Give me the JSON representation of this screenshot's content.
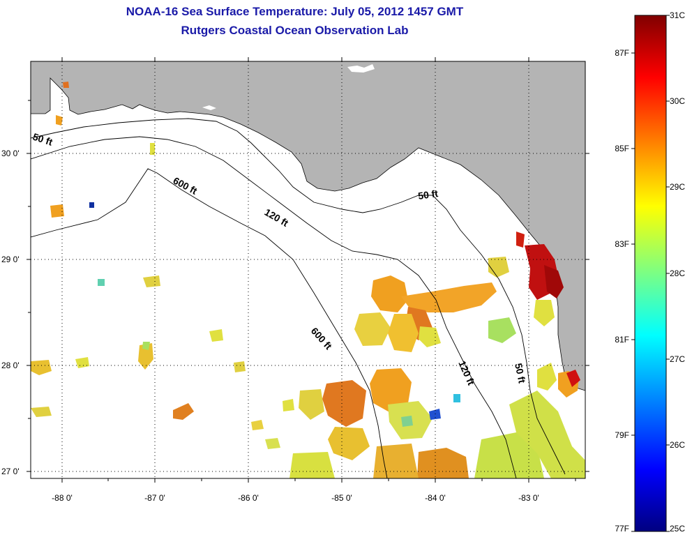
{
  "header": {
    "title": "NOAA-16 Sea Surface Temperature:  July 05, 2012 1457 GMT",
    "subtitle": "Rutgers Coastal Ocean Observation Lab"
  },
  "map": {
    "lon_ticks": [
      "-88 0'",
      "-87 0'",
      "-86 0'",
      "-85 0'",
      "-84 0'",
      "-83 0'"
    ],
    "lat_ticks": [
      "30 0'",
      "29 0'",
      "28 0'",
      "27 0'"
    ],
    "contour_labels": [
      "50 ft",
      "600 ft",
      "120 ft",
      "50 ft",
      "600 ft",
      "120 ft",
      "50 ft"
    ],
    "colors": {
      "land": "#b4b4b4",
      "ocean": "#ffffff",
      "grid": "#000000"
    }
  },
  "colorbar": {
    "celsius_labels": [
      "31C",
      "30C",
      "29C",
      "28C",
      "27C",
      "26C",
      "25C"
    ],
    "fahrenheit_labels": [
      "87F",
      "85F",
      "83F",
      "81F",
      "79F",
      "77F"
    ]
  }
}
